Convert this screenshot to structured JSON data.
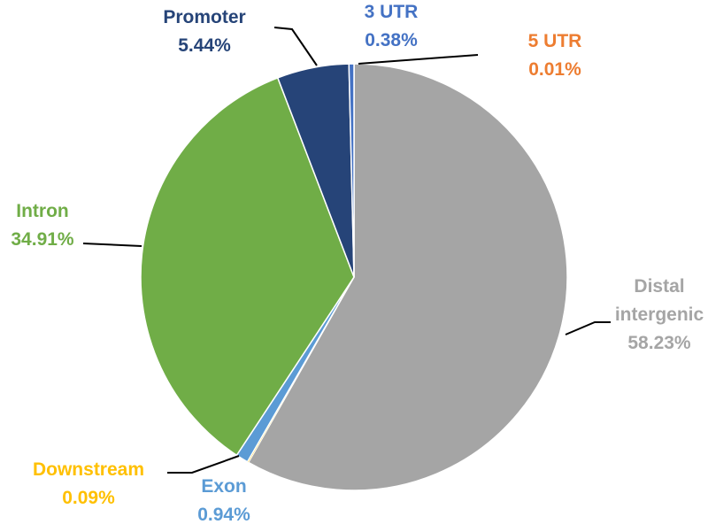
{
  "chart_data": {
    "type": "pie",
    "start_angle_deg": 0,
    "direction": "clockwise",
    "slices": [
      {
        "name": "5 UTR",
        "value": 0.01,
        "label": "0.01%",
        "color": "#ED7D31",
        "label_color": "#ED7D31"
      },
      {
        "name": "Distal intergenic",
        "name_lines": [
          "Distal",
          "intergenic"
        ],
        "value": 58.23,
        "label": "58.23%",
        "color": "#A5A5A5",
        "label_color": "#A5A5A5"
      },
      {
        "name": "Downstream",
        "value": 0.09,
        "label": "0.09%",
        "color": "#FFC000",
        "label_color": "#FFC000"
      },
      {
        "name": "Exon",
        "value": 0.94,
        "label": "0.94%",
        "color": "#5B9BD5",
        "label_color": "#5B9BD5"
      },
      {
        "name": "Intron",
        "value": 34.91,
        "label": "34.91%",
        "color": "#70AD47",
        "label_color": "#70AD47"
      },
      {
        "name": "Promoter",
        "value": 5.44,
        "label": "5.44%",
        "color": "#264478",
        "label_color": "#264478"
      },
      {
        "name": "3 UTR",
        "value": 0.38,
        "label": "0.38%",
        "color": "#4472C4",
        "label_color": "#4472C4"
      }
    ],
    "legend": "none",
    "data_labels": "outside with leader lines"
  }
}
